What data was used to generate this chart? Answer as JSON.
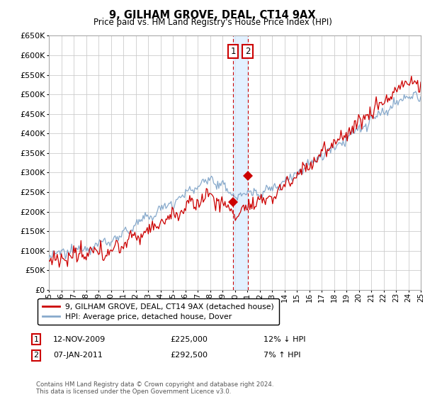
{
  "title": "9, GILHAM GROVE, DEAL, CT14 9AX",
  "subtitle": "Price paid vs. HM Land Registry's House Price Index (HPI)",
  "yticks": [
    0,
    50000,
    100000,
    150000,
    200000,
    250000,
    300000,
    350000,
    400000,
    450000,
    500000,
    550000,
    600000,
    650000
  ],
  "x_start_year": 1995,
  "x_end_year": 2025,
  "background_color": "#ffffff",
  "grid_color": "#cccccc",
  "line_color_red": "#cc0000",
  "line_color_blue": "#88aacc",
  "annotation_fill": "#ddeeff",
  "annotation_border": "#cc0000",
  "sale1_x": 2009.87,
  "sale1_price": 225000,
  "sale1_label": "12-NOV-2009",
  "sale1_pct": "12% ↓ HPI",
  "sale2_x": 2011.03,
  "sale2_price": 292500,
  "sale2_label": "07-JAN-2011",
  "sale2_pct": "7% ↑ HPI",
  "legend_label_red": "9, GILHAM GROVE, DEAL, CT14 9AX (detached house)",
  "legend_label_blue": "HPI: Average price, detached house, Dover",
  "footer": "Contains HM Land Registry data © Crown copyright and database right 2024.\nThis data is licensed under the Open Government Licence v3.0."
}
